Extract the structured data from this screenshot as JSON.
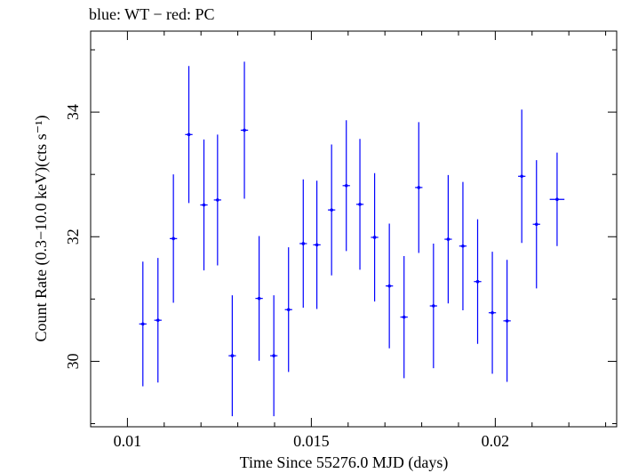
{
  "chart_data": {
    "type": "scatter",
    "title": "blue: WT − red: PC",
    "xlabel": "Time Since 55276.0 MJD (days)",
    "ylabel": "Count Rate (0.3−10.0 keV)(cts s⁻¹)",
    "xlim": [
      0.009,
      0.0233
    ],
    "ylim": [
      28.95,
      35.3
    ],
    "xticks": [
      0.01,
      0.015,
      0.02
    ],
    "xtick_labels": [
      "0.01",
      "0.015",
      "0.02"
    ],
    "yticks": [
      30,
      32,
      34
    ],
    "ytick_labels": [
      "30",
      "32",
      "34"
    ],
    "grid": false,
    "series": [
      {
        "color": "#0000ff",
        "points": [
          {
            "x": 0.01042,
            "xerr": 0.0001,
            "y": 30.6,
            "yerr": 1.0
          },
          {
            "x": 0.01083,
            "xerr": 0.0001,
            "y": 30.66,
            "yerr": 1.0
          },
          {
            "x": 0.01125,
            "xerr": 0.0001,
            "y": 31.97,
            "yerr": 1.03
          },
          {
            "x": 0.01167,
            "xerr": 0.0001,
            "y": 33.64,
            "yerr": 1.1
          },
          {
            "x": 0.01208,
            "xerr": 0.0001,
            "y": 32.51,
            "yerr": 1.05
          },
          {
            "x": 0.01245,
            "xerr": 0.0001,
            "y": 32.59,
            "yerr": 1.05
          },
          {
            "x": 0.01285,
            "xerr": 0.0001,
            "y": 30.09,
            "yerr": 0.97
          },
          {
            "x": 0.01318,
            "xerr": 0.0001,
            "y": 33.71,
            "yerr": 1.1
          },
          {
            "x": 0.01358,
            "xerr": 0.0001,
            "y": 31.01,
            "yerr": 1.0
          },
          {
            "x": 0.01398,
            "xerr": 0.0001,
            "y": 30.09,
            "yerr": 0.97
          },
          {
            "x": 0.01438,
            "xerr": 0.0001,
            "y": 30.83,
            "yerr": 1.0
          },
          {
            "x": 0.01478,
            "xerr": 0.0001,
            "y": 31.89,
            "yerr": 1.03
          },
          {
            "x": 0.01515,
            "xerr": 0.0001,
            "y": 31.87,
            "yerr": 1.03
          },
          {
            "x": 0.01555,
            "xerr": 0.0001,
            "y": 32.43,
            "yerr": 1.05
          },
          {
            "x": 0.01595,
            "xerr": 0.0001,
            "y": 32.82,
            "yerr": 1.05
          },
          {
            "x": 0.01632,
            "xerr": 0.0001,
            "y": 32.52,
            "yerr": 1.05
          },
          {
            "x": 0.01672,
            "xerr": 0.0001,
            "y": 31.99,
            "yerr": 1.03
          },
          {
            "x": 0.01712,
            "xerr": 0.0001,
            "y": 31.21,
            "yerr": 1.0
          },
          {
            "x": 0.01752,
            "xerr": 0.0001,
            "y": 30.71,
            "yerr": 0.98
          },
          {
            "x": 0.01792,
            "xerr": 0.0001,
            "y": 32.79,
            "yerr": 1.05
          },
          {
            "x": 0.01832,
            "xerr": 0.0001,
            "y": 30.89,
            "yerr": 1.0
          },
          {
            "x": 0.01872,
            "xerr": 0.0001,
            "y": 31.96,
            "yerr": 1.03
          },
          {
            "x": 0.01912,
            "xerr": 0.0001,
            "y": 31.85,
            "yerr": 1.03
          },
          {
            "x": 0.01952,
            "xerr": 0.0001,
            "y": 31.28,
            "yerr": 1.0
          },
          {
            "x": 0.01992,
            "xerr": 0.0001,
            "y": 30.78,
            "yerr": 0.98
          },
          {
            "x": 0.02032,
            "xerr": 0.0001,
            "y": 30.65,
            "yerr": 0.98
          },
          {
            "x": 0.02072,
            "xerr": 0.0001,
            "y": 32.97,
            "yerr": 1.07
          },
          {
            "x": 0.02112,
            "xerr": 0.0001,
            "y": 32.2,
            "yerr": 1.03
          },
          {
            "x": 0.02168,
            "xerr": 0.0002,
            "y": 32.6,
            "yerr": 0.75
          }
        ]
      }
    ]
  }
}
